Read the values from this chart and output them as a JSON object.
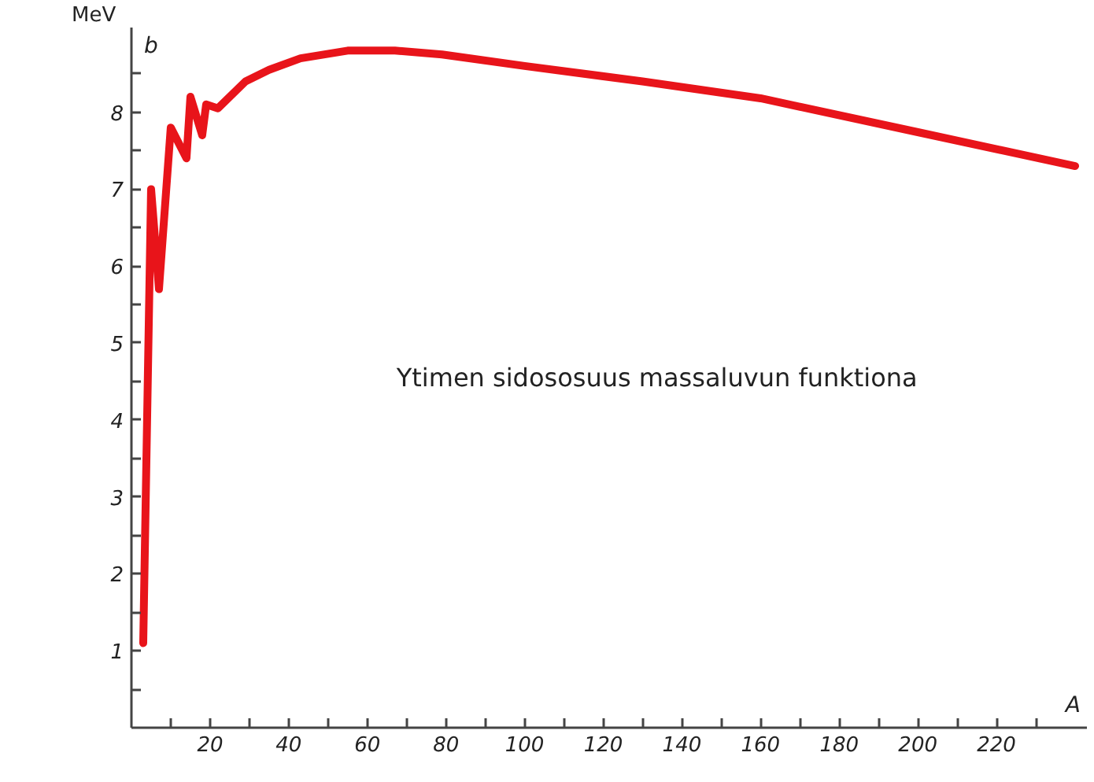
{
  "chart_data": {
    "type": "line",
    "xlabel": "A",
    "ylabel": "b",
    "annotations": [
      "Ytimen sidososuus massaluvun funktiona",
      "MeV"
    ],
    "x": [
      3,
      5,
      7,
      10,
      14,
      15,
      18,
      19,
      22,
      29,
      35,
      43,
      55,
      67,
      79,
      100,
      130,
      160,
      200,
      240
    ],
    "series": [
      {
        "color": "#e8141a",
        "values": [
          1.1,
          7.0,
          5.7,
          7.8,
          7.4,
          8.2,
          7.7,
          8.1,
          8.05,
          8.4,
          8.55,
          8.7,
          8.8,
          8.8,
          8.75,
          8.6,
          8.4,
          8.18,
          7.74,
          7.3
        ]
      }
    ],
    "xlim": [
      0,
      243
    ],
    "ylim": [
      0,
      9.1
    ],
    "xticks": [
      {
        "value": 10,
        "label": null
      },
      20,
      {
        "value": 30,
        "label": null
      },
      40,
      {
        "value": 50,
        "label": null
      },
      60,
      {
        "value": 70,
        "label": null
      },
      80,
      {
        "value": 90,
        "label": null
      },
      100,
      {
        "value": 110,
        "label": null
      },
      120,
      {
        "value": 130,
        "label": null
      },
      140,
      {
        "value": 150,
        "label": null
      },
      160,
      {
        "value": 170,
        "label": null
      },
      180,
      {
        "value": 190,
        "label": null
      },
      200,
      {
        "value": 210,
        "label": null
      },
      220,
      {
        "value": 230,
        "label": null
      }
    ],
    "yticks": [
      {
        "value": 0.5,
        "label": null
      },
      1,
      {
        "value": 1.5,
        "label": null
      },
      2,
      {
        "value": 2.5,
        "label": null
      },
      3,
      {
        "value": 3.5,
        "label": null
      },
      4,
      {
        "value": 4.5,
        "label": null
      },
      5,
      {
        "value": 5.5,
        "label": null
      },
      6,
      {
        "value": 6.5,
        "label": null
      },
      7,
      {
        "value": 7.5,
        "label": null
      },
      8,
      {
        "value": 8.5,
        "label": null
      }
    ],
    "grid": false,
    "marker": "none",
    "line_style": "solid"
  }
}
